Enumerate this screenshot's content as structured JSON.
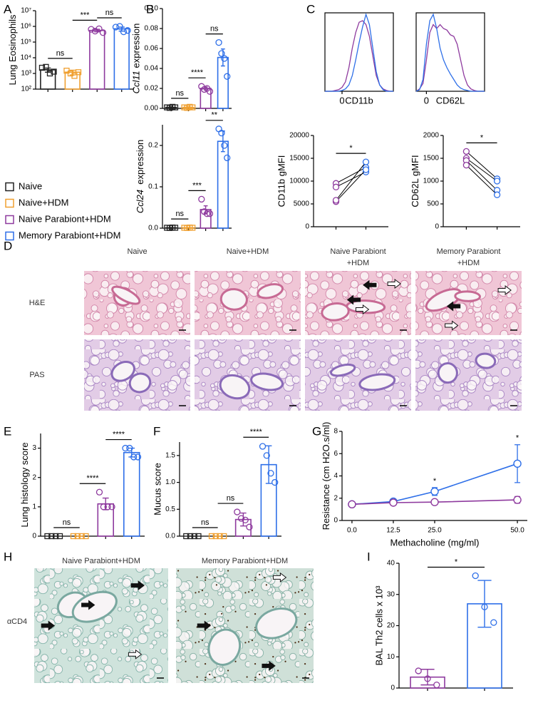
{
  "panels": [
    "A",
    "B",
    "C",
    "D",
    "E",
    "F",
    "G",
    "H",
    "I"
  ],
  "legend": [
    {
      "name": "Naive",
      "color": "#222222"
    },
    {
      "name": "Naive+HDM",
      "color": "#F0A030"
    },
    {
      "name": "Naive Parabiont+HDM",
      "color": "#8E3A9E"
    },
    {
      "name": "Memory Parabiont+HDM",
      "color": "#2E6FE8"
    }
  ],
  "histology": {
    "columns": [
      [
        "Naive"
      ],
      [
        "Naive+HDM"
      ],
      [
        "Naive Parabiont",
        "+HDM"
      ],
      [
        "Memory Parabiont",
        "+HDM"
      ]
    ],
    "rows": [
      "H&E",
      "PAS"
    ]
  },
  "ihc": {
    "columns": [
      "Naive Parabiont+HDM",
      "Memory Parabiont+HDM"
    ],
    "row": "αCD4"
  },
  "chart_data": [
    {
      "type": "bar",
      "ylabel": "Lung Eosinophils",
      "log": true,
      "ylim": [
        100,
        10000000
      ],
      "yticks": [
        {
          "value": 100,
          "label": "10²"
        },
        {
          "value": 1000,
          "label": "10³"
        },
        {
          "value": 10000,
          "label": "10⁴"
        },
        {
          "value": 100000,
          "label": "10⁵"
        },
        {
          "value": 1000000,
          "label": "10⁶"
        },
        {
          "value": 10000000,
          "label": "10⁷"
        }
      ],
      "categories": [
        null,
        null,
        null,
        null
      ],
      "colors": [
        "#222222",
        "#F0A030",
        "#8E3A9E",
        "#2E6FE8"
      ],
      "markers": [
        "square",
        "square",
        "circle",
        "circle"
      ],
      "values": [
        1700,
        1200,
        550000,
        700000
      ],
      "errors": [
        500,
        400,
        100000,
        200000
      ],
      "points": [
        [
          2300,
          2600,
          1000,
          1300
        ],
        [
          1500,
          1000,
          700,
          1200
        ],
        [
          650000,
          500000,
          700000,
          400000
        ],
        [
          900000,
          1000000,
          450000,
          550000
        ]
      ],
      "significance": [
        "ns",
        "***",
        "ns"
      ]
    },
    {
      "type": "bar",
      "ylabel": [
        "Ccl11",
        " expression"
      ],
      "ylim": [
        0,
        0.1
      ],
      "yticks": [
        {
          "value": 0,
          "label": "0.00"
        },
        0.02,
        0.04,
        0.06,
        0.08,
        {
          "value": 0.1,
          "label": "0.10"
        }
      ],
      "categories": [
        null,
        null,
        null,
        null
      ],
      "colors": [
        "#222222",
        "#F0A030",
        "#8E3A9E",
        "#2E6FE8"
      ],
      "markers": [
        "square",
        "square",
        "circle",
        "circle"
      ],
      "values": [
        0.001,
        0.001,
        0.02,
        0.051
      ],
      "errors": [
        0.0005,
        0.0005,
        0.0015,
        0.0085
      ],
      "points": [
        [
          0.001,
          0.0005,
          0.0015,
          0.001
        ],
        [
          0.001,
          0.0005,
          0.0015,
          0.001
        ],
        [
          0.022,
          0.019,
          0.02,
          0.017
        ],
        [
          0.066,
          0.055,
          0.05,
          0.032
        ]
      ],
      "significance": [
        "ns",
        "****",
        "ns"
      ]
    },
    {
      "type": "bar",
      "ylabel": [
        "Ccl24",
        "  expression"
      ],
      "ylim": [
        0,
        0.25
      ],
      "yticks": [
        {
          "value": 0,
          "label": "0.0"
        },
        0.1,
        0.2
      ],
      "categories": [
        null,
        null,
        null,
        null
      ],
      "colors": [
        "#222222",
        "#F0A030",
        "#8E3A9E",
        "#2E6FE8"
      ],
      "markers": [
        "square",
        "square",
        "circle",
        "circle"
      ],
      "values": [
        0.001,
        0.001,
        0.045,
        0.21
      ],
      "errors": [
        0.0005,
        0.0005,
        0.009,
        0.025
      ],
      "points": [
        [
          0.001,
          0.0005,
          0.0015,
          0.001
        ],
        [
          0.001,
          0.0005,
          0.0015,
          0.001
        ],
        [
          0.07,
          0.04,
          0.035,
          0.035
        ],
        [
          0.24,
          0.23,
          0.2,
          0.17
        ]
      ],
      "significance": [
        "ns",
        "***",
        "**"
      ]
    },
    {
      "type": "density",
      "xlabel": "CD11b",
      "xlim": [
        -25,
        75
      ],
      "xticks": [
        0
      ],
      "ylim": [
        0,
        100
      ],
      "x": [
        -25,
        -20,
        -15,
        -10,
        -5,
        0,
        5,
        10,
        15,
        20,
        25,
        30,
        35,
        40,
        45,
        50,
        55,
        60,
        65,
        70,
        75
      ],
      "series": [
        {
          "color": "#8E3A9E",
          "values": [
            0,
            0,
            0,
            1,
            2,
            5,
            12,
            30,
            55,
            75,
            88,
            90,
            85,
            70,
            45,
            20,
            8,
            3,
            1,
            0,
            0
          ]
        },
        {
          "color": "#2E6FE8",
          "values": [
            0,
            0,
            0,
            0,
            0,
            1,
            3,
            8,
            20,
            40,
            62,
            82,
            98,
            85,
            55,
            25,
            8,
            2,
            0,
            0,
            0
          ]
        }
      ]
    },
    {
      "type": "density",
      "xlabel": "CD62L",
      "xlim": [
        -15,
        85
      ],
      "xticks": [
        0
      ],
      "ylim": [
        0,
        100
      ],
      "x": [
        -15,
        -10,
        -5,
        0,
        5,
        10,
        15,
        20,
        25,
        30,
        35,
        40,
        45,
        50,
        55,
        60,
        65,
        70,
        75,
        80,
        85
      ],
      "series": [
        {
          "color": "#8E3A9E",
          "values": [
            0,
            3,
            10,
            40,
            75,
            85,
            80,
            85,
            80,
            78,
            72,
            70,
            60,
            40,
            20,
            8,
            3,
            1,
            0,
            0,
            0
          ]
        },
        {
          "color": "#2E6FE8",
          "values": [
            0,
            2,
            15,
            60,
            90,
            98,
            80,
            55,
            40,
            30,
            22,
            15,
            8,
            4,
            2,
            1,
            0,
            0,
            0,
            0,
            0
          ]
        }
      ]
    },
    {
      "type": "slope",
      "ylabel": "CD11b gMFI",
      "ylim": [
        0,
        20000
      ],
      "yticks": [
        0,
        5000,
        10000,
        15000,
        20000
      ],
      "categories": [
        null,
        null
      ],
      "colors": [
        "#8E3A9E",
        "#2E6FE8"
      ],
      "pairs": [
        [
          9500,
          13000
        ],
        [
          8700,
          12000
        ],
        [
          5500,
          12500
        ],
        [
          5800,
          14200
        ]
      ],
      "significance": [
        "*"
      ]
    },
    {
      "type": "slope",
      "ylabel": "CD62L gMFI",
      "ylim": [
        0,
        2000
      ],
      "yticks": [
        0,
        500,
        1000,
        1500,
        2000
      ],
      "categories": [
        null,
        null
      ],
      "colors": [
        "#8E3A9E",
        "#2E6FE8"
      ],
      "pairs": [
        [
          1650,
          1050
        ],
        [
          1500,
          1000
        ],
        [
          1450,
          800
        ],
        [
          1350,
          700
        ]
      ],
      "significance": [
        "*"
      ]
    },
    {
      "type": "bar",
      "ylabel": "Lung histology score",
      "ylim": [
        0,
        3.5
      ],
      "yticks": [
        0,
        1,
        2,
        3
      ],
      "categories": [
        null,
        null,
        null,
        null
      ],
      "colors": [
        "#222222",
        "#F0A030",
        "#8E3A9E",
        "#2E6FE8"
      ],
      "markers": [
        "square",
        "square",
        "circle",
        "circle"
      ],
      "values": [
        0,
        0,
        1.1,
        2.85
      ],
      "errors": [
        0,
        0,
        0.2,
        0.15
      ],
      "points": [
        [
          0,
          0,
          0,
          0
        ],
        [
          0,
          0,
          0,
          0
        ],
        [
          1.5,
          1,
          1,
          1
        ],
        [
          3,
          3,
          2.7,
          2.7
        ]
      ],
      "significance": [
        "ns",
        "****",
        "****"
      ]
    },
    {
      "type": "bar",
      "ylabel": "Mucus score",
      "ylim": [
        0,
        1.75
      ],
      "yticks": [
        {
          "value": 0,
          "label": "0.0"
        },
        0.5,
        {
          "value": 1,
          "label": "1.0"
        },
        1.5
      ],
      "categories": [
        null,
        null,
        null,
        null
      ],
      "colors": [
        "#222222",
        "#F0A030",
        "#8E3A9E",
        "#2E6FE8"
      ],
      "markers": [
        "square",
        "square",
        "circle",
        "circle"
      ],
      "values": [
        0,
        0,
        0.31,
        1.33
      ],
      "errors": [
        0,
        0,
        0.12,
        0.35
      ],
      "points": [
        [
          0,
          0,
          0,
          0
        ],
        [
          0,
          0,
          0,
          0
        ],
        [
          0.45,
          0.33,
          0.3,
          0.17
        ],
        [
          1.67,
          1.5,
          1.17,
          1.0
        ]
      ],
      "significance": [
        "ns",
        "ns",
        "****"
      ]
    },
    {
      "type": "line",
      "ylabel": "Resistance (cm H2O.s/ml)",
      "xlabel": "Methacholine (mg/ml)",
      "x": [
        0,
        12.5,
        25,
        50
      ],
      "xlim": [
        -3,
        53
      ],
      "xticks": [
        {
          "value": 0,
          "label": "0.0"
        },
        12.5,
        {
          "value": 25,
          "label": "25.0"
        },
        {
          "value": 50,
          "label": "50.0"
        }
      ],
      "ylim": [
        0,
        8
      ],
      "yticks": [
        0,
        2,
        4,
        6,
        8
      ],
      "series": [
        {
          "color": "#2E6FE8",
          "values": [
            1.45,
            1.7,
            2.6,
            5.1
          ],
          "errors": [
            0.05,
            0.1,
            0.35,
            1.7
          ],
          "labels": [
            null,
            null,
            "*",
            "*"
          ]
        },
        {
          "color": "#8E3A9E",
          "values": [
            1.45,
            1.6,
            1.65,
            1.85
          ],
          "errors": [
            0.05,
            0.05,
            0.1,
            0.3
          ],
          "labels": [
            null,
            null,
            null,
            null
          ]
        }
      ]
    },
    {
      "type": "bar",
      "ylabel": "BAL Th2 cells x 10³",
      "ylim": [
        0,
        40
      ],
      "yticks": [
        0,
        10,
        20,
        30,
        40
      ],
      "categories": [
        null,
        null
      ],
      "colors": [
        "#8E3A9E",
        "#2E6FE8"
      ],
      "markers": [
        "circle",
        "circle"
      ],
      "values": [
        3.5,
        27
      ],
      "errors": [
        2.5,
        7.5
      ],
      "points": [
        [
          5.5,
          3,
          1
        ],
        [
          36,
          26,
          21
        ]
      ],
      "significance": [
        "*"
      ]
    }
  ]
}
